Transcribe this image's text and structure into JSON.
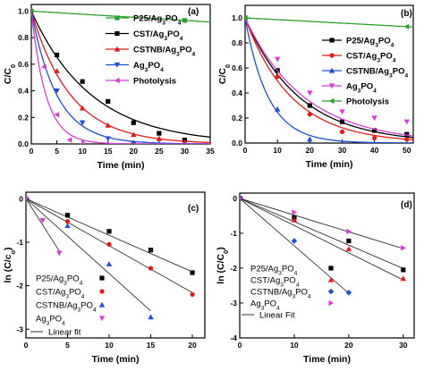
{
  "chart_data": [
    {
      "type": "line",
      "panel_label": "(a)",
      "xlabel": "Time (min)",
      "ylabel": "C/C",
      "ylabel_sub": "0",
      "xlim": [
        0,
        35
      ],
      "ylim": [
        0,
        1.05
      ],
      "xticks": [
        0,
        5,
        10,
        15,
        20,
        25,
        30,
        35
      ],
      "yticks": [
        0.0,
        0.2,
        0.4,
        0.6,
        0.8,
        1.0
      ],
      "ytick_decimals": 1,
      "legend_position": "top-right",
      "series": [
        {
          "name": "P25/Ag",
          "name_parts": [
            [
              "P25/Ag",
              ""
            ],
            [
              "3",
              "sub"
            ],
            [
              "PO",
              ""
            ],
            [
              "4",
              "sub"
            ]
          ],
          "color": "#2ca02c",
          "marker": "square",
          "x": [
            0,
            30
          ],
          "y": [
            1.0,
            0.93
          ],
          "curve": "linear"
        },
        {
          "name": "CST/Ag",
          "name_parts": [
            [
              "CST/Ag",
              ""
            ],
            [
              "3",
              "sub"
            ],
            [
              "PO",
              ""
            ],
            [
              "4",
              "sub"
            ]
          ],
          "color": "#000000",
          "marker": "square",
          "x": [
            0,
            5,
            10,
            15,
            20,
            25,
            30
          ],
          "y": [
            1.0,
            0.67,
            0.47,
            0.32,
            0.16,
            0.08,
            0.03
          ],
          "curve": "exp",
          "k": 0.085
        },
        {
          "name": "CSTNB/Ag",
          "name_parts": [
            [
              "CSTNB/Ag",
              ""
            ],
            [
              "3",
              "sub"
            ],
            [
              "PO",
              ""
            ],
            [
              "4",
              "sub"
            ]
          ],
          "color": "#e31a1c",
          "marker": "triangle-up",
          "x": [
            0,
            5,
            10,
            15,
            20,
            25,
            30
          ],
          "y": [
            1.0,
            0.55,
            0.27,
            0.14,
            0.07,
            0.04,
            0.01
          ],
          "curve": "exp",
          "k": 0.13
        },
        {
          "name": "Ag",
          "name_parts": [
            [
              "Ag",
              ""
            ],
            [
              "3",
              "sub"
            ],
            [
              "PO",
              ""
            ],
            [
              "4",
              "sub"
            ]
          ],
          "color": "#1f4fd1",
          "marker": "triangle-down",
          "x": [
            0,
            5,
            10,
            15,
            20
          ],
          "y": [
            1.0,
            0.4,
            0.16,
            0.04,
            0.0
          ],
          "curve": "exp",
          "k": 0.2
        },
        {
          "name": "Photolysis",
          "name_parts": [
            [
              "Photolysis",
              ""
            ]
          ],
          "color": "#d63fd6",
          "marker": "triangle-left",
          "x": [
            0,
            2.5,
            5,
            7.5,
            10
          ],
          "y": [
            1.0,
            0.58,
            0.22,
            0.03,
            0.0
          ],
          "curve": "exp",
          "k": 0.35
        }
      ]
    },
    {
      "type": "line",
      "panel_label": "(b)",
      "xlabel": "Time (min)",
      "ylabel": "C/C",
      "ylabel_sub": "0",
      "xlim": [
        0,
        52
      ],
      "ylim": [
        0,
        1.1
      ],
      "xticks": [
        0,
        10,
        20,
        30,
        40,
        50
      ],
      "yticks": [
        0.0,
        0.2,
        0.4,
        0.6,
        0.8,
        1.0
      ],
      "ytick_decimals": 1,
      "legend_position": "right",
      "series": [
        {
          "name": "P25/Ag",
          "name_parts": [
            [
              "P25/Ag",
              ""
            ],
            [
              "3",
              "sub"
            ],
            [
              "PO",
              ""
            ],
            [
              "4",
              "sub"
            ]
          ],
          "color": "#000000",
          "marker": "square",
          "x": [
            0,
            10,
            20,
            30,
            40,
            50
          ],
          "y": [
            1.0,
            0.58,
            0.3,
            0.17,
            0.1,
            0.07
          ],
          "curve": "exp",
          "k": 0.06
        },
        {
          "name": "CST/Ag",
          "name_parts": [
            [
              "CST/Ag",
              ""
            ],
            [
              "3",
              "sub"
            ],
            [
              "PO",
              ""
            ],
            [
              "4",
              "sub"
            ]
          ],
          "color": "#e31a1c",
          "marker": "circle",
          "x": [
            0,
            10,
            20,
            30,
            40,
            50
          ],
          "y": [
            1.0,
            0.53,
            0.23,
            0.09,
            0.04,
            0.03
          ],
          "curve": "exp",
          "k": 0.07
        },
        {
          "name": "CSTNB/Ag",
          "name_parts": [
            [
              "CSTNB/Ag",
              ""
            ],
            [
              "3",
              "sub"
            ],
            [
              "PO",
              ""
            ],
            [
              "4",
              "sub"
            ]
          ],
          "color": "#1f4fd1",
          "marker": "triangle-up",
          "x": [
            0,
            10,
            20,
            30
          ],
          "y": [
            1.0,
            0.27,
            0.03,
            0.0
          ],
          "curve": "exp",
          "k": 0.14
        },
        {
          "name": "Ag",
          "name_parts": [
            [
              "Ag",
              ""
            ],
            [
              "3",
              "sub"
            ],
            [
              "PO",
              ""
            ],
            [
              "4",
              "sub"
            ]
          ],
          "color": "#d63fd6",
          "marker": "triangle-down",
          "x": [
            0,
            10,
            20,
            30,
            40,
            50
          ],
          "y": [
            1.0,
            0.67,
            0.4,
            0.25,
            0.2,
            0.17
          ],
          "curve": "exp",
          "k": 0.055
        },
        {
          "name": "Photolysis",
          "name_parts": [
            [
              "Photolysis",
              ""
            ]
          ],
          "color": "#2ca02c",
          "marker": "triangle-left",
          "x": [
            0,
            50
          ],
          "y": [
            1.0,
            0.93
          ],
          "curve": "linear"
        }
      ]
    },
    {
      "type": "scatter",
      "panel_label": "(c)",
      "xlabel": "Time (min)",
      "ylabel": "ln (C/c",
      "ylabel_sub": "o",
      "ylabel_end": ")",
      "xlim": [
        0,
        21.5
      ],
      "ylim": [
        -3.2,
        0.15
      ],
      "xticks": [
        0,
        5,
        10,
        15,
        20
      ],
      "yticks": [
        0,
        -1,
        -2,
        -3
      ],
      "ytick_decimals": 0,
      "legend_position": "bottom-left",
      "fit_label": "Linear fit",
      "series": [
        {
          "name": "P25/Ag",
          "name_parts": [
            [
              "P25/Ag",
              ""
            ],
            [
              "3",
              "sub"
            ],
            [
              "PO",
              ""
            ],
            [
              "4",
              "sub"
            ]
          ],
          "color": "#000000",
          "marker": "square",
          "x": [
            0,
            5,
            10,
            15,
            20
          ],
          "y": [
            0,
            -0.38,
            -0.75,
            -1.18,
            -1.7
          ],
          "fit_slope": -0.084
        },
        {
          "name": "CST/Ag",
          "name_parts": [
            [
              "CST/Ag",
              ""
            ],
            [
              "3",
              "sub"
            ],
            [
              "PO",
              ""
            ],
            [
              "4",
              "sub"
            ]
          ],
          "color": "#e31a1c",
          "marker": "circle",
          "x": [
            0,
            5,
            10,
            15,
            20
          ],
          "y": [
            0,
            -0.52,
            -1.05,
            -1.6,
            -2.2
          ],
          "fit_slope": -0.108
        },
        {
          "name": "CSTNB/Ag",
          "name_parts": [
            [
              "CSTNB/Ag",
              ""
            ],
            [
              "3",
              "sub"
            ],
            [
              "PO",
              ""
            ],
            [
              "4",
              "sub"
            ]
          ],
          "color": "#1f4fd1",
          "marker": "triangle-up",
          "x": [
            0,
            5,
            10,
            15
          ],
          "y": [
            0,
            -0.62,
            -1.5,
            -2.72
          ],
          "fit_slope": -0.172
        },
        {
          "name": "Ag",
          "name_parts": [
            [
              "Ag",
              ""
            ],
            [
              "3",
              "sub"
            ],
            [
              "PO",
              ""
            ],
            [
              "4",
              "sub"
            ]
          ],
          "color": "#d63fd6",
          "marker": "triangle-down",
          "x": [
            0,
            2,
            4
          ],
          "y": [
            0,
            -0.5,
            -1.25
          ],
          "fit_slope": -0.3
        }
      ]
    },
    {
      "type": "scatter",
      "panel_label": "(d)",
      "xlabel": "Time (min)",
      "ylabel": "ln (C/C",
      "ylabel_sub": "0",
      "ylabel_end": ")",
      "xlim": [
        0,
        32
      ],
      "ylim": [
        -4,
        0.15
      ],
      "xticks": [
        0,
        10,
        20,
        30
      ],
      "yticks": [
        0,
        -1,
        -2,
        -3,
        -4
      ],
      "ytick_decimals": 0,
      "legend_position": "bottom-right",
      "fit_label": "Linear Fit",
      "series": [
        {
          "name": "P25/Ag",
          "name_parts": [
            [
              "P25/Ag",
              ""
            ],
            [
              "3",
              "sub"
            ],
            [
              "PO",
              ""
            ],
            [
              "4",
              "sub"
            ]
          ],
          "color": "#000000",
          "marker": "square",
          "x": [
            0,
            10,
            20,
            30
          ],
          "y": [
            0,
            -0.55,
            -1.22,
            -2.05
          ],
          "fit_slope": -0.067
        },
        {
          "name": "CST/Ag",
          "name_parts": [
            [
              "CST/Ag",
              ""
            ],
            [
              "3",
              "sub"
            ],
            [
              "PO",
              ""
            ],
            [
              "4",
              "sub"
            ]
          ],
          "color": "#e31a1c",
          "marker": "triangle-up",
          "x": [
            0,
            10,
            20,
            30
          ],
          "y": [
            0,
            -0.62,
            -1.45,
            -2.3
          ],
          "fit_slope": -0.078
        },
        {
          "name": "CSTNB/Ag",
          "name_parts": [
            [
              "CSTNB/Ag",
              ""
            ],
            [
              "3",
              "sub"
            ],
            [
              "PO",
              ""
            ],
            [
              "4",
              "sub"
            ]
          ],
          "color": "#1f4fd1",
          "marker": "diamond",
          "x": [
            0,
            10,
            20
          ],
          "y": [
            0,
            -1.22,
            -2.7
          ],
          "fit_slope": -0.136
        },
        {
          "name": "Ag",
          "name_parts": [
            [
              "Ag",
              ""
            ],
            [
              "3",
              "sub"
            ],
            [
              "PO",
              ""
            ],
            [
              "4",
              "sub"
            ]
          ],
          "color": "#d63fd6",
          "marker": "triangle-right",
          "x": [
            0,
            10,
            20,
            30
          ],
          "y": [
            0,
            -0.4,
            -0.95,
            -1.42
          ],
          "fit_slope": -0.048
        }
      ]
    }
  ]
}
